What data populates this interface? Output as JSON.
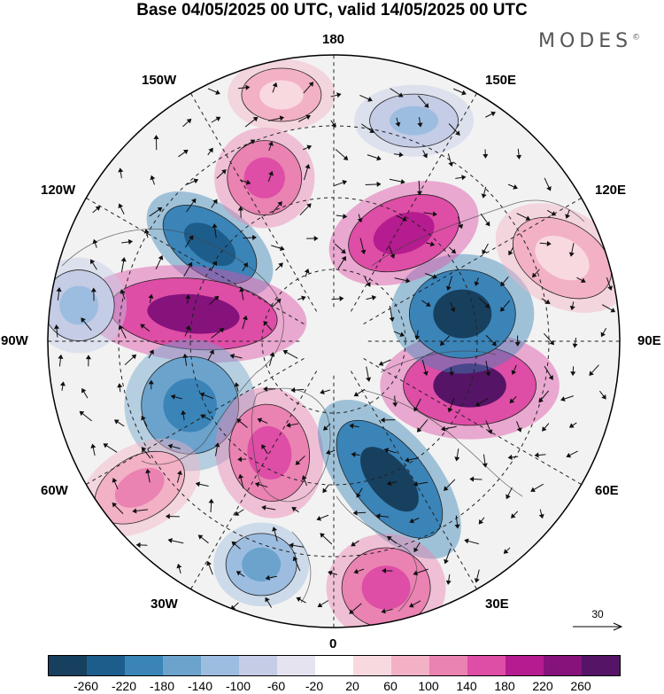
{
  "title": "Base 04/05/2025 00 UTC, valid 14/05/2025 00 UTC",
  "brand": "MODES",
  "brand_mark": "©",
  "longitude_labels": {
    "top": "180",
    "bottom": "0",
    "left": "90W",
    "right": "90E",
    "upper_left_1": "150W",
    "upper_left_2": "120W",
    "upper_right_1": "150E",
    "upper_right_2": "120E",
    "lower_left_1": "60W",
    "lower_left_2": "30W",
    "lower_right_1": "60E",
    "lower_right_2": "30E"
  },
  "reference_vector": {
    "value": "30",
    "icon": "right-arrow-icon"
  },
  "colorbar": {
    "colors": [
      "#17405f",
      "#1d5d8c",
      "#3a84b8",
      "#6ba3cd",
      "#9dbde0",
      "#c4cce6",
      "#e5e3f0",
      "#ffffff",
      "#f9d9e0",
      "#f3b1c6",
      "#ea82b2",
      "#de4da6",
      "#b51c8f",
      "#86127c",
      "#551466"
    ],
    "labels": [
      "-260",
      "-220",
      "-180",
      "-140",
      "-100",
      "-60",
      "-20",
      "20",
      "60",
      "100",
      "140",
      "180",
      "220",
      "260"
    ]
  },
  "anomalies": [
    {
      "lon": -128,
      "r": 0.55,
      "rx": 60,
      "ry": 34,
      "rot": 35,
      "color": "#3a84b8",
      "inner": "#1d5d8c"
    },
    {
      "lon": -101,
      "r": 0.5,
      "rx": 95,
      "ry": 40,
      "rot": 5,
      "color": "#de4da6",
      "inner": "#86127c"
    },
    {
      "lon": -157,
      "r": 0.62,
      "rx": 42,
      "ry": 42,
      "rot": 0,
      "color": "#ea82b2",
      "inner": "#de4da6"
    },
    {
      "lon": -66,
      "r": 0.55,
      "rx": 55,
      "ry": 55,
      "rot": 0,
      "color": "#6ba3cd",
      "inner": "#3a84b8"
    },
    {
      "lon": -30,
      "r": 0.45,
      "rx": 45,
      "ry": 55,
      "rot": -10,
      "color": "#ea82b2",
      "inner": "#de4da6"
    },
    {
      "lon": 22,
      "r": 0.52,
      "rx": 40,
      "ry": 80,
      "rot": -40,
      "color": "#3a84b8",
      "inner": "#17405f"
    },
    {
      "lon": 72,
      "r": 0.5,
      "rx": 75,
      "ry": 45,
      "rot": 0,
      "color": "#de4da6",
      "inner": "#551466"
    },
    {
      "lon": 102,
      "r": 0.46,
      "rx": 60,
      "ry": 50,
      "rot": 0,
      "color": "#3a84b8",
      "inner": "#17405f"
    },
    {
      "lon": 147,
      "r": 0.45,
      "rx": 65,
      "ry": 40,
      "rot": -20,
      "color": "#de4da6",
      "inner": "#b51c8f"
    },
    {
      "lon": 12,
      "r": 0.88,
      "rx": 50,
      "ry": 45,
      "rot": 0,
      "color": "#ea82b2",
      "inner": "#de4da6"
    },
    {
      "lon": -18,
      "r": 0.82,
      "rx": 40,
      "ry": 35,
      "rot": 0,
      "color": "#9dbde0",
      "inner": "#6ba3cd"
    },
    {
      "lon": -98,
      "r": 0.9,
      "rx": 40,
      "ry": 40,
      "rot": 0,
      "color": "#c4cce6",
      "inner": "#9dbde0"
    },
    {
      "lon": -53,
      "r": 0.85,
      "rx": 55,
      "ry": 35,
      "rot": -30,
      "color": "#f3b1c6",
      "inner": "#ea82b2"
    },
    {
      "lon": 110,
      "r": 0.85,
      "rx": 60,
      "ry": 40,
      "rot": 30,
      "color": "#f3b1c6",
      "inner": "#f9d9e0"
    },
    {
      "lon": 160,
      "r": 0.82,
      "rx": 50,
      "ry": 30,
      "rot": 0,
      "color": "#c4cce6",
      "inner": "#9dbde0"
    },
    {
      "lon": -168,
      "r": 0.88,
      "rx": 45,
      "ry": 30,
      "rot": 0,
      "color": "#f3b1c6",
      "inner": "#f9d9e0"
    }
  ]
}
